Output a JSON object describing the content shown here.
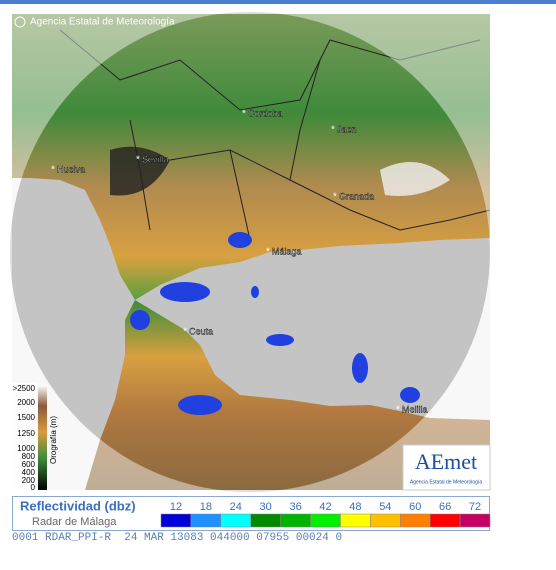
{
  "copyright": "Agencia Estatal de Meteorología",
  "cities": [
    "Cordoba",
    "Jaen",
    "Sevilla",
    "Huelva",
    "Granada",
    "Málaga",
    "Ceuta",
    "Melilla"
  ],
  "orography": {
    "title": "Orografía (m)",
    "ticks": [
      {
        "value": 2500,
        "label": ">2500"
      },
      2000,
      1500,
      1250,
      1000,
      800,
      600,
      400,
      200,
      0
    ]
  },
  "legend": {
    "title": "Reflectividad (dbz)",
    "subtitle": "Radar de Málaga",
    "levels": [
      12,
      18,
      24,
      30,
      36,
      42,
      48,
      54,
      60,
      66,
      72
    ],
    "colors": [
      "#0000d8",
      "#1e90ff",
      "#00ffff",
      "#008a00",
      "#00b400",
      "#00f000",
      "#ffff00",
      "#ffc000",
      "#ff7f00",
      "#ff0000",
      "#c80064"
    ]
  },
  "footer": "0001 RDAR_PPI-R  24 MAR 13083 044000 07955 00024 0",
  "logo": {
    "name": "AEmet",
    "subtitle": "Agencia Estatal de Meteorología"
  }
}
